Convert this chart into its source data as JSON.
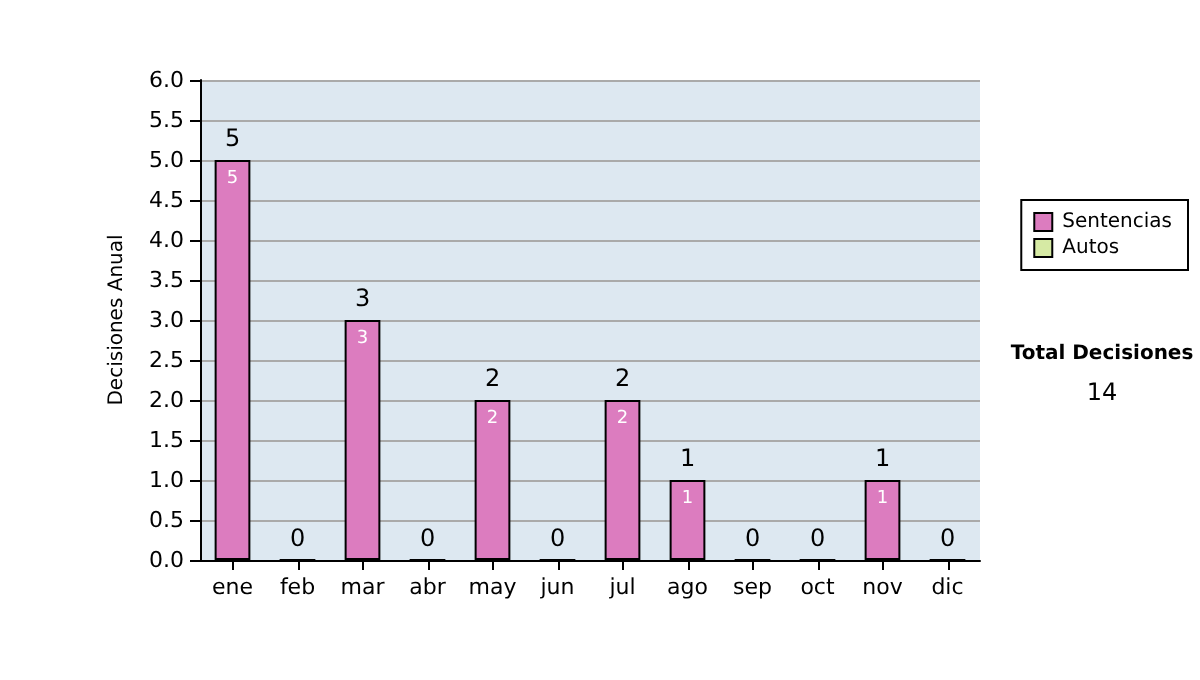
{
  "chart_data": {
    "type": "bar",
    "ylabel": "Decisiones Anual",
    "categories": [
      "ene",
      "feb",
      "mar",
      "abr",
      "may",
      "jun",
      "jul",
      "ago",
      "sep",
      "oct",
      "nov",
      "dic"
    ],
    "series": [
      {
        "name": "Sentencias",
        "color": "#dc7cbf",
        "values": [
          5,
          0,
          3,
          0,
          2,
          0,
          2,
          1,
          0,
          0,
          1,
          0
        ],
        "value_labels": [
          "5",
          null,
          "3",
          null,
          "2",
          null,
          "2",
          "1",
          null,
          null,
          "1",
          null
        ]
      },
      {
        "name": "Autos",
        "color": "#d6eaa4",
        "values": [
          0,
          0,
          0,
          0,
          0,
          0,
          0,
          0,
          0,
          0,
          0,
          0
        ]
      }
    ],
    "stacked": true,
    "totals": [
      "5",
      "0",
      "3",
      "0",
      "2",
      "0",
      "2",
      "1",
      "0",
      "0",
      "1",
      "0"
    ],
    "ylim": [
      0,
      6
    ],
    "yticks": [
      {
        "value": 0,
        "label": "0.0"
      },
      0.5,
      {
        "value": 1,
        "label": "1.0"
      },
      1.5,
      {
        "value": 2,
        "label": "2.0"
      },
      2.5,
      {
        "value": 3,
        "label": "3.0"
      },
      3.5,
      {
        "value": 4,
        "label": "4.0"
      },
      4.5,
      {
        "value": 5,
        "label": "5.0"
      },
      5.5,
      {
        "value": 6,
        "label": "6.0"
      }
    ],
    "grid": "y",
    "legend": "right",
    "annotations": [
      "Total Decisiones",
      "14"
    ]
  }
}
